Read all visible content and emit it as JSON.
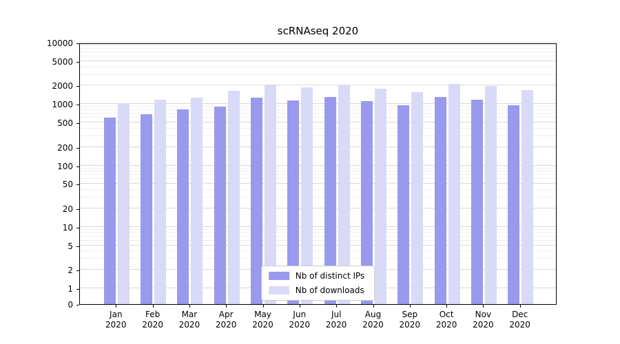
{
  "chart_data": {
    "type": "bar",
    "title": "scRNAseq 2020",
    "categories": [
      "Jan",
      "Feb",
      "Mar",
      "Apr",
      "May",
      "Jun",
      "Jul",
      "Aug",
      "Sep",
      "Oct",
      "Nov",
      "Dec"
    ],
    "category_year": "2020",
    "series": [
      {
        "name": "Nb of distinct IPs",
        "color": "#9999ee",
        "values": [
          600,
          690,
          810,
          900,
          1270,
          1150,
          1290,
          1120,
          960,
          1290,
          1190,
          950
        ]
      },
      {
        "name": "Nb of downloads",
        "color": "#d9d9f8",
        "values": [
          1030,
          1190,
          1280,
          1640,
          2010,
          1860,
          2070,
          1770,
          1560,
          2120,
          1980,
          1680
        ]
      }
    ],
    "yscale": "symlog",
    "yticks": [
      0,
      1,
      2,
      5,
      10,
      20,
      50,
      100,
      200,
      500,
      1000,
      2000,
      5000,
      10000
    ],
    "ylim": [
      0,
      10000
    ],
    "grid": true,
    "legend_position": "lower center"
  }
}
